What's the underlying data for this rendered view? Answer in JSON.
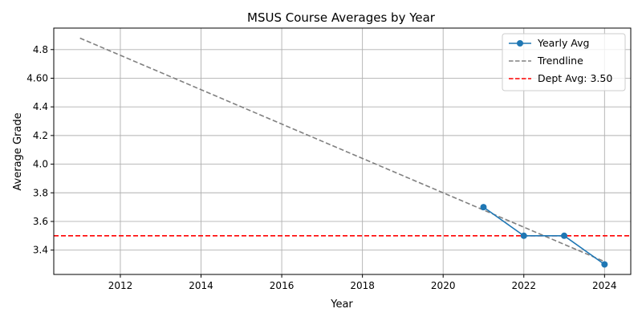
{
  "chart_data": {
    "type": "line",
    "title": "MSUS Course Averages by Year",
    "xlabel": "Year",
    "ylabel": "Average Grade",
    "xlim": [
      2010.35,
      2024.65
    ],
    "ylim": [
      3.23,
      4.95
    ],
    "grid": true,
    "legend_position": "top-right",
    "x_ticks": [
      2012,
      2014,
      2016,
      2018,
      2020,
      2022,
      2024
    ],
    "x_tick_labels": [
      "2012",
      "2014",
      "2016",
      "2018",
      "2020",
      "2022",
      "2024"
    ],
    "y_ticks": [
      3.4,
      3.6,
      3.8,
      4.0,
      4.2,
      4.4,
      4.6,
      4.8
    ],
    "y_tick_labels": [
      "3.4",
      "3.6",
      "3.8",
      "4.0",
      "4.2",
      "4.4",
      "4.60",
      "4.8"
    ],
    "series": [
      {
        "name": "Yearly Avg",
        "style": "solid-marker",
        "color": "#1f77b4",
        "x": [
          2021,
          2022,
          2023,
          2024
        ],
        "y": [
          3.7,
          3.5,
          3.5,
          3.3
        ]
      },
      {
        "name": "Trendline",
        "style": "dashed",
        "color": "#808080",
        "x": [
          2011,
          2024
        ],
        "y": [
          4.88,
          3.32
        ]
      }
    ],
    "reference_lines": [
      {
        "name": "Dept Avg: 3.50",
        "value": 3.5,
        "color": "#ff0000",
        "style": "dashed"
      }
    ]
  }
}
